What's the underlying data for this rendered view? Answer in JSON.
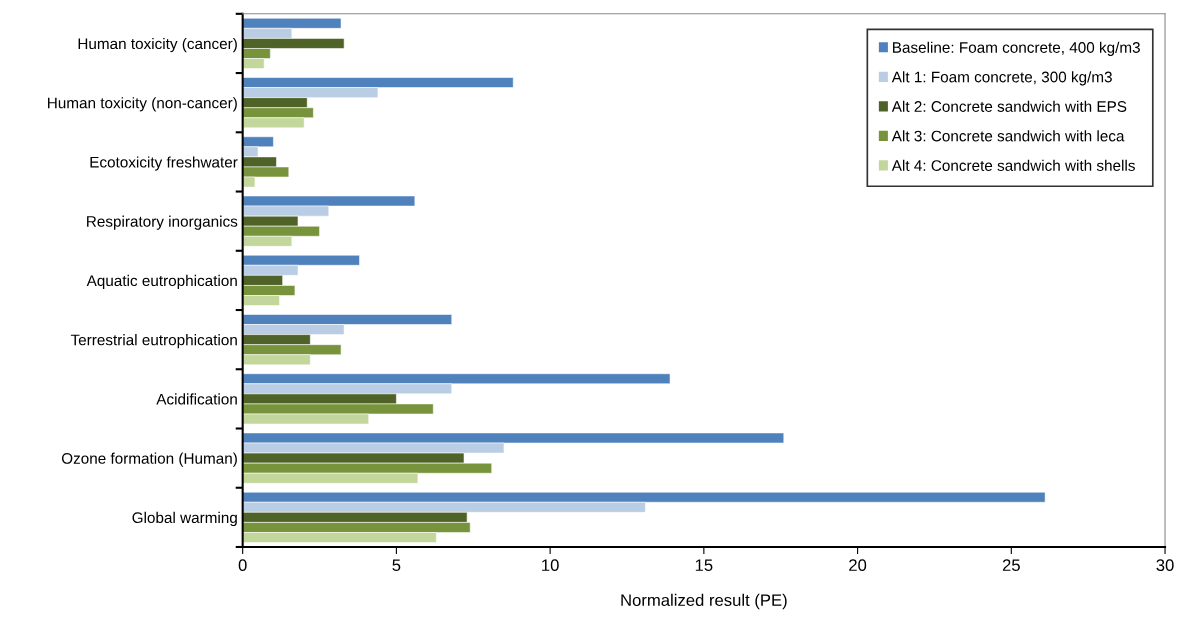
{
  "chart_data": {
    "type": "bar",
    "orientation": "horizontal",
    "xlabel": "Normalized result (PE)",
    "categories": [
      "Human toxicity (cancer)",
      "Human toxicity (non-cancer)",
      "Ecotoxicity freshwater",
      "Respiratory inorganics",
      "Aquatic eutrophication",
      "Terrestrial eutrophication",
      "Acidification",
      "Ozone formation (Human)",
      "Global warming"
    ],
    "series": [
      {
        "name": "Baseline: Foam concrete, 400 kg/m3",
        "color": "#4f81bd",
        "values": [
          3.2,
          8.8,
          1.0,
          5.6,
          3.8,
          6.8,
          13.9,
          17.6,
          26.1
        ]
      },
      {
        "name": "Alt 1: Foam concrete, 300 kg/m3",
        "color": "#b9cde5",
        "values": [
          1.6,
          4.4,
          0.5,
          2.8,
          1.8,
          3.3,
          6.8,
          8.5,
          13.1
        ]
      },
      {
        "name": "Alt 2: Concrete sandwich with EPS",
        "color": "#4f6228",
        "values": [
          3.3,
          2.1,
          1.1,
          1.8,
          1.3,
          2.2,
          5.0,
          7.2,
          7.3
        ]
      },
      {
        "name": "Alt 3: Concrete sandwich with leca",
        "color": "#77933c",
        "values": [
          0.9,
          2.3,
          1.5,
          2.5,
          1.7,
          3.2,
          6.2,
          8.1,
          7.4
        ]
      },
      {
        "name": "Alt 4: Concrete sandwich with shells",
        "color": "#c3d69b",
        "values": [
          0.7,
          2.0,
          0.4,
          1.6,
          1.2,
          2.2,
          4.1,
          5.7,
          6.3
        ]
      }
    ],
    "xlim": [
      0,
      30
    ],
    "xticks": [
      0,
      5,
      10,
      15,
      20,
      25,
      30
    ],
    "grid": false,
    "legend": "top right"
  }
}
